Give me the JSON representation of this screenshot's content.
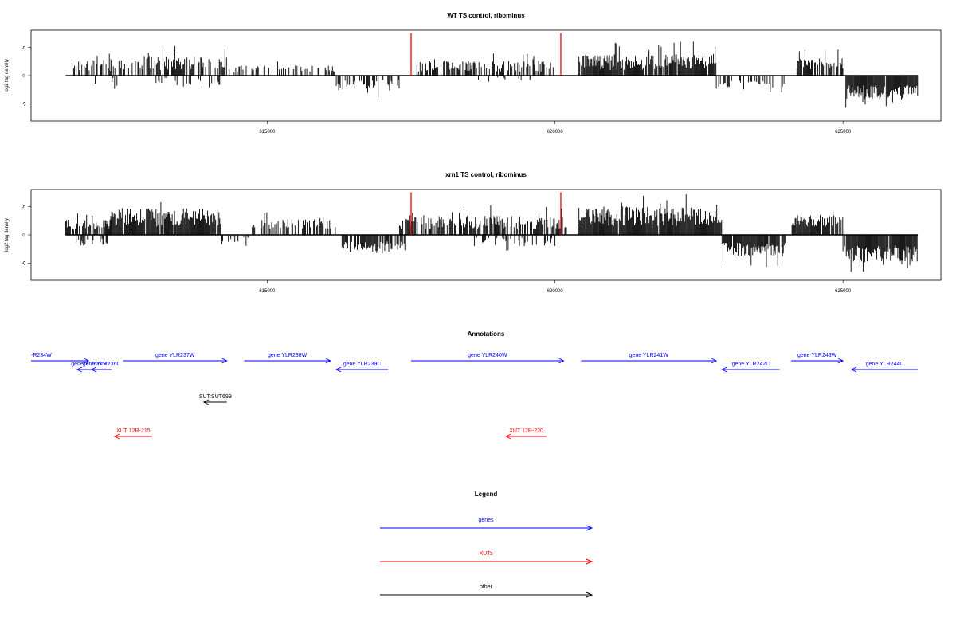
{
  "colors": {
    "genes": "#0000ff",
    "xuts": "#ff0000",
    "other": "#000000",
    "marker": "#ff0000",
    "bars": "#000000"
  },
  "chart_data": [
    {
      "type": "bar",
      "panel": "wt",
      "title": "WT TS control, ribominus",
      "ylabel": "log2 tag density",
      "xlim": [
        610900,
        626700
      ],
      "ylim": [
        -8,
        8
      ],
      "x_ticks": [
        615000,
        620000,
        625000
      ],
      "x_tick_labels": [
        "615000",
        "620000",
        "625000"
      ],
      "y_ticks": [
        5,
        0,
        -5
      ],
      "y_tick_labels": [
        "5",
        "0",
        "-5"
      ],
      "baseline_range": [
        611500,
        626300
      ],
      "markers": [
        617500,
        620100
      ],
      "signal_regions": [
        {
          "from": 611600,
          "to": 612600,
          "sign": 1,
          "mean": 1.8,
          "amp": 1.0,
          "density": 0.55
        },
        {
          "from": 612000,
          "to": 612400,
          "sign": -1,
          "mean": 1.2,
          "amp": 0.8,
          "density": 0.35
        },
        {
          "from": 612600,
          "to": 614300,
          "sign": 1,
          "mean": 2.2,
          "amp": 1.2,
          "density": 0.6
        },
        {
          "from": 613000,
          "to": 614200,
          "sign": -1,
          "mean": 1.0,
          "amp": 0.7,
          "density": 0.25
        },
        {
          "from": 614300,
          "to": 616200,
          "sign": 1,
          "mean": 1.2,
          "amp": 0.6,
          "density": 0.35
        },
        {
          "from": 616200,
          "to": 617300,
          "sign": -1,
          "mean": 1.6,
          "amp": 0.9,
          "density": 0.45
        },
        {
          "from": 617600,
          "to": 620000,
          "sign": 1,
          "mean": 1.7,
          "amp": 1.0,
          "density": 0.55
        },
        {
          "from": 618500,
          "to": 619800,
          "sign": -1,
          "mean": 0.7,
          "amp": 0.4,
          "density": 0.12
        },
        {
          "from": 620400,
          "to": 622800,
          "sign": 1,
          "mean": 2.4,
          "amp": 1.4,
          "density": 0.85
        },
        {
          "from": 622800,
          "to": 624000,
          "sign": -1,
          "mean": 1.6,
          "amp": 0.9,
          "density": 0.4
        },
        {
          "from": 624200,
          "to": 625000,
          "sign": 1,
          "mean": 2.1,
          "amp": 1.0,
          "density": 0.65
        },
        {
          "from": 625050,
          "to": 626300,
          "sign": -1,
          "mean": 3.0,
          "amp": 1.3,
          "density": 0.95
        }
      ]
    },
    {
      "type": "bar",
      "panel": "xrn1",
      "title": "xrn1 TS control, ribominus",
      "ylabel": "log2 tag density",
      "xlim": [
        610900,
        626700
      ],
      "ylim": [
        -8,
        8
      ],
      "x_ticks": [
        615000,
        620000,
        625000
      ],
      "x_tick_labels": [
        "615000",
        "620000",
        "625000"
      ],
      "y_ticks": [
        5,
        0,
        -5
      ],
      "y_tick_labels": [
        "5",
        "0",
        "-5"
      ],
      "baseline_range": [
        611500,
        626300
      ],
      "markers": [
        617500,
        620100
      ],
      "signal_regions": [
        {
          "from": 611500,
          "to": 612300,
          "sign": 1,
          "mean": 1.8,
          "amp": 0.9,
          "density": 0.75
        },
        {
          "from": 611600,
          "to": 612300,
          "sign": -1,
          "mean": 1.2,
          "amp": 0.7,
          "density": 0.4
        },
        {
          "from": 612300,
          "to": 614200,
          "sign": 1,
          "mean": 3.1,
          "amp": 1.6,
          "density": 0.95
        },
        {
          "from": 614200,
          "to": 614700,
          "sign": -1,
          "mean": 0.8,
          "amp": 0.5,
          "density": 0.3
        },
        {
          "from": 614700,
          "to": 616200,
          "sign": 1,
          "mean": 1.9,
          "amp": 0.9,
          "density": 0.6
        },
        {
          "from": 616300,
          "to": 617400,
          "sign": -1,
          "mean": 2.0,
          "amp": 0.9,
          "density": 0.75
        },
        {
          "from": 617300,
          "to": 620200,
          "sign": 1,
          "mean": 2.2,
          "amp": 1.2,
          "density": 0.7
        },
        {
          "from": 618500,
          "to": 620000,
          "sign": -1,
          "mean": 1.2,
          "amp": 0.8,
          "density": 0.3
        },
        {
          "from": 620400,
          "to": 622900,
          "sign": 1,
          "mean": 3.3,
          "amp": 1.7,
          "density": 0.98
        },
        {
          "from": 622900,
          "to": 624000,
          "sign": -1,
          "mean": 2.6,
          "amp": 1.2,
          "density": 0.9
        },
        {
          "from": 624100,
          "to": 625000,
          "sign": 1,
          "mean": 2.5,
          "amp": 1.0,
          "density": 0.85
        },
        {
          "from": 625000,
          "to": 626300,
          "sign": -1,
          "mean": 3.3,
          "amp": 1.4,
          "density": 0.98
        }
      ]
    }
  ],
  "annotations": {
    "title": "Annotations",
    "features": [
      {
        "label": "-R234W",
        "class": "genes",
        "from": 610900,
        "to": 611900,
        "strand": "+",
        "row": 0
      },
      {
        "label": "gene YLR235C",
        "class": "genes",
        "from": 612150,
        "to": 611700,
        "strand": "-",
        "row": 1
      },
      {
        "label": "gene YLR236C",
        "class": "genes",
        "from": 612300,
        "to": 611950,
        "strand": "-",
        "row": 1
      },
      {
        "label": "gene YLR237W",
        "class": "genes",
        "from": 612500,
        "to": 614300,
        "strand": "+",
        "row": 0
      },
      {
        "label": "gene YLR238W",
        "class": "genes",
        "from": 614600,
        "to": 616100,
        "strand": "+",
        "row": 0
      },
      {
        "label": "gene YLR239C",
        "class": "genes",
        "from": 617100,
        "to": 616200,
        "strand": "-",
        "row": 1
      },
      {
        "label": "gene YLR240W",
        "class": "genes",
        "from": 617500,
        "to": 620150,
        "strand": "+",
        "row": 0
      },
      {
        "label": "gene YLR241W",
        "class": "genes",
        "from": 620450,
        "to": 622800,
        "strand": "+",
        "row": 0
      },
      {
        "label": "gene YLR242C",
        "class": "genes",
        "from": 623900,
        "to": 622900,
        "strand": "-",
        "row": 1
      },
      {
        "label": "gene YLR243W",
        "class": "genes",
        "from": 624100,
        "to": 625000,
        "strand": "+",
        "row": 0
      },
      {
        "label": "gene YLR244C",
        "class": "genes",
        "from": 626300,
        "to": 625150,
        "strand": "-",
        "row": 1
      },
      {
        "label": "SUT:SUT699",
        "class": "other",
        "from": 614300,
        "to": 613900,
        "strand": "-",
        "row": 2
      },
      {
        "label": "XUT 12R-215",
        "class": "xuts",
        "from": 613000,
        "to": 612350,
        "strand": "-",
        "row": 3
      },
      {
        "label": "XUT 12R-220",
        "class": "xuts",
        "from": 619850,
        "to": 619150,
        "strand": "-",
        "row": 3
      }
    ]
  },
  "legend": {
    "title": "Legend",
    "items": [
      {
        "label": "genes",
        "class": "genes"
      },
      {
        "label": "XUTs",
        "class": "xuts"
      },
      {
        "label": "other",
        "class": "other"
      }
    ]
  }
}
